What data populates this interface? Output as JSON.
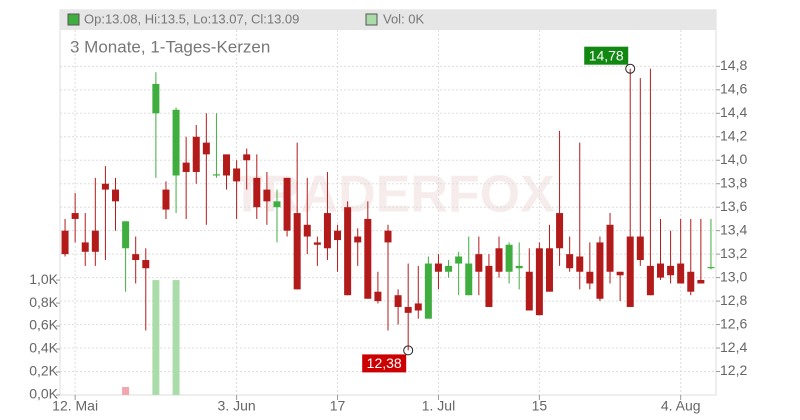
{
  "chart_data": {
    "type": "candlestick",
    "header_ohlc": "Op:13.08, Hi:13.5, Lo:13.07, Cl:13.09",
    "header_vol": "Vol: 0K",
    "subtitle": "3 Monate, 1-Tages-Kerzen",
    "watermark": "TRADERFOX",
    "categories": [
      null,
      "12. Mai",
      null,
      null,
      null,
      null,
      null,
      null,
      null,
      null,
      null,
      null,
      null,
      null,
      null,
      null,
      null,
      "3. Jun",
      null,
      null,
      null,
      null,
      null,
      null,
      null,
      null,
      null,
      "17",
      null,
      null,
      null,
      null,
      null,
      null,
      null,
      null,
      null,
      "1. Jul",
      null,
      null,
      null,
      null,
      null,
      null,
      null,
      null,
      null,
      "15",
      null,
      null,
      null,
      null,
      null,
      null,
      null,
      null,
      null,
      null,
      null,
      null,
      null,
      "4. Aug",
      null,
      null,
      null
    ],
    "open": [
      13.4,
      13.55,
      13.3,
      13.4,
      13.8,
      13.75,
      13.25,
      13.2,
      13.15,
      14.4,
      13.75,
      13.87,
      13.98,
      14.2,
      14.15,
      13.87,
      14.05,
      13.93,
      14.05,
      13.85,
      13.75,
      13.6,
      13.85,
      13.55,
      13.45,
      13.3,
      13.55,
      13.4,
      13.6,
      13.35,
      13.5,
      12.88,
      13.4,
      12.85,
      12.75,
      12.78,
      12.65,
      13.12,
      13.05,
      13.12,
      12.85,
      13.2,
      13.1,
      13.25,
      13.05,
      13.08,
      13.05,
      13.25,
      13.25,
      13.55,
      13.2,
      13.18,
      13.05,
      13.3,
      13.45,
      13.05,
      13.35,
      13.35,
      13.1,
      13.12,
      13.1,
      13.12,
      13.05,
      12.98,
      13.08
    ],
    "high": [
      13.5,
      13.72,
      13.55,
      13.85,
      13.95,
      13.85,
      13.48,
      13.35,
      13.25,
      14.75,
      13.82,
      14.45,
      14.2,
      14.3,
      14.4,
      14.4,
      14.05,
      14.0,
      14.1,
      14.05,
      13.9,
      13.75,
      13.85,
      14.15,
      13.85,
      13.35,
      13.9,
      13.45,
      13.65,
      13.42,
      13.65,
      13.05,
      13.45,
      12.9,
      13.12,
      13.1,
      13.18,
      13.2,
      13.15,
      13.22,
      13.35,
      13.35,
      13.2,
      13.35,
      13.3,
      13.3,
      13.25,
      13.3,
      13.45,
      14.25,
      13.35,
      14.15,
      13.3,
      13.35,
      13.55,
      13.05,
      14.78,
      14.7,
      14.78,
      13.5,
      13.4,
      13.5,
      13.5,
      13.5,
      13.5
    ],
    "low": [
      13.18,
      13.3,
      13.1,
      13.1,
      13.15,
      13.4,
      12.88,
      12.95,
      12.55,
      13.85,
      13.5,
      13.55,
      13.5,
      13.8,
      13.45,
      13.85,
      13.75,
      13.5,
      13.75,
      13.5,
      13.45,
      13.3,
      13.35,
      12.9,
      13.2,
      13.1,
      13.15,
      13.05,
      12.85,
      13.1,
      12.82,
      12.78,
      12.55,
      12.6,
      12.38,
      12.65,
      12.65,
      12.9,
      13.0,
      12.85,
      12.85,
      12.85,
      12.75,
      13.0,
      12.95,
      12.9,
      12.72,
      12.68,
      12.88,
      13.1,
      13.05,
      12.9,
      12.9,
      12.8,
      12.95,
      12.8,
      12.75,
      13.1,
      12.85,
      12.98,
      12.95,
      12.95,
      12.85,
      12.95,
      13.07
    ],
    "close": [
      13.2,
      13.5,
      13.22,
      13.22,
      13.75,
      13.65,
      13.48,
      13.15,
      13.08,
      14.65,
      13.58,
      14.43,
      13.9,
      13.9,
      14.05,
      13.88,
      13.87,
      13.82,
      14.0,
      13.6,
      13.65,
      13.65,
      13.4,
      12.9,
      13.35,
      13.28,
      13.25,
      13.32,
      12.85,
      13.3,
      12.82,
      12.8,
      13.3,
      12.75,
      12.7,
      12.72,
      13.12,
      13.05,
      13.1,
      13.18,
      13.12,
      13.05,
      12.75,
      13.05,
      13.28,
      13.1,
      12.72,
      12.68,
      12.88,
      13.25,
      13.08,
      13.05,
      12.95,
      12.82,
      13.05,
      13.02,
      12.75,
      13.15,
      12.85,
      13.0,
      13.02,
      12.95,
      12.88,
      12.95,
      13.09
    ],
    "volume": [
      0,
      0,
      0,
      0,
      0,
      0,
      0.07,
      0,
      0,
      1.0,
      0,
      1.0,
      0,
      0,
      0,
      0,
      0,
      0,
      0,
      0,
      0,
      0,
      0,
      0,
      0,
      0,
      0,
      0,
      0,
      0,
      0,
      0,
      0,
      0,
      0,
      0,
      0,
      0,
      0,
      0,
      0,
      0,
      0,
      0,
      0,
      0,
      0,
      0,
      0,
      0,
      0,
      0,
      0,
      0,
      0,
      0,
      0,
      0,
      0,
      0,
      0,
      0,
      0,
      0,
      0
    ],
    "up_color": "#3fae3f",
    "down_color": "#b31b1b",
    "volume_up_color": "#aadcaa",
    "volume_down_color": "#f2a6ae",
    "ylim": [
      12.0,
      15.28
    ],
    "yticks": [
      {
        "value": 12.2,
        "label": "12,2"
      },
      {
        "value": 12.4,
        "label": "12,4"
      },
      {
        "value": 12.6,
        "label": "12,6"
      },
      {
        "value": 12.8,
        "label": "12,8"
      },
      {
        "value": 13.0,
        "label": "13,0"
      },
      {
        "value": 13.2,
        "label": "13,2"
      },
      {
        "value": 13.4,
        "label": "13,4"
      },
      {
        "value": 13.6,
        "label": "13,6"
      },
      {
        "value": 13.8,
        "label": "13,8"
      },
      {
        "value": 14.0,
        "label": "14,0"
      },
      {
        "value": 14.2,
        "label": "14,2"
      },
      {
        "value": 14.4,
        "label": "14,4"
      },
      {
        "value": 14.6,
        "label": "14,6"
      },
      {
        "value": 14.8,
        "label": "14,8"
      }
    ],
    "y2lim": [
      0,
      3.35
    ],
    "y2ticks": [
      {
        "value": 0,
        "label": "0,0K"
      },
      {
        "value": 0.2,
        "label": "0,2K"
      },
      {
        "value": 0.4,
        "label": "0,4K"
      },
      {
        "value": 0.6,
        "label": "0,6K"
      },
      {
        "value": 0.8,
        "label": "0,8K"
      },
      {
        "value": 1.0,
        "label": "1,0K"
      }
    ],
    "grid": true,
    "annotations": [
      {
        "label": "14,78",
        "value": 14.78,
        "color": "#118811"
      },
      {
        "label": "12,38",
        "value": 12.38,
        "color": "#cc0000"
      }
    ]
  }
}
